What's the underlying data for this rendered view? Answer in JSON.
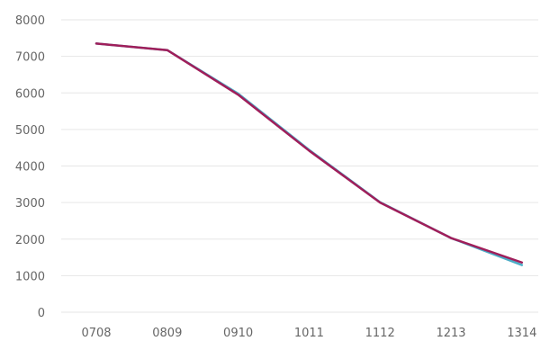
{
  "chart_data": {
    "type": "line",
    "categories": [
      "0708",
      "0809",
      "0910",
      "1011",
      "1112",
      "1213",
      "1314"
    ],
    "series": [
      {
        "values": [
          7350,
          7170,
          5980,
          4440,
          3010,
          2030,
          1290
        ],
        "color": "#4bacc6"
      },
      {
        "values": [
          7350,
          7170,
          5950,
          4420,
          3000,
          2030,
          1360
        ],
        "color": "#a01e5a"
      }
    ],
    "ylim": [
      0,
      8000
    ],
    "yticks": [
      0,
      1000,
      2000,
      3000,
      4000,
      5000,
      6000,
      7000,
      8000
    ],
    "grid": true,
    "legend": "none"
  }
}
